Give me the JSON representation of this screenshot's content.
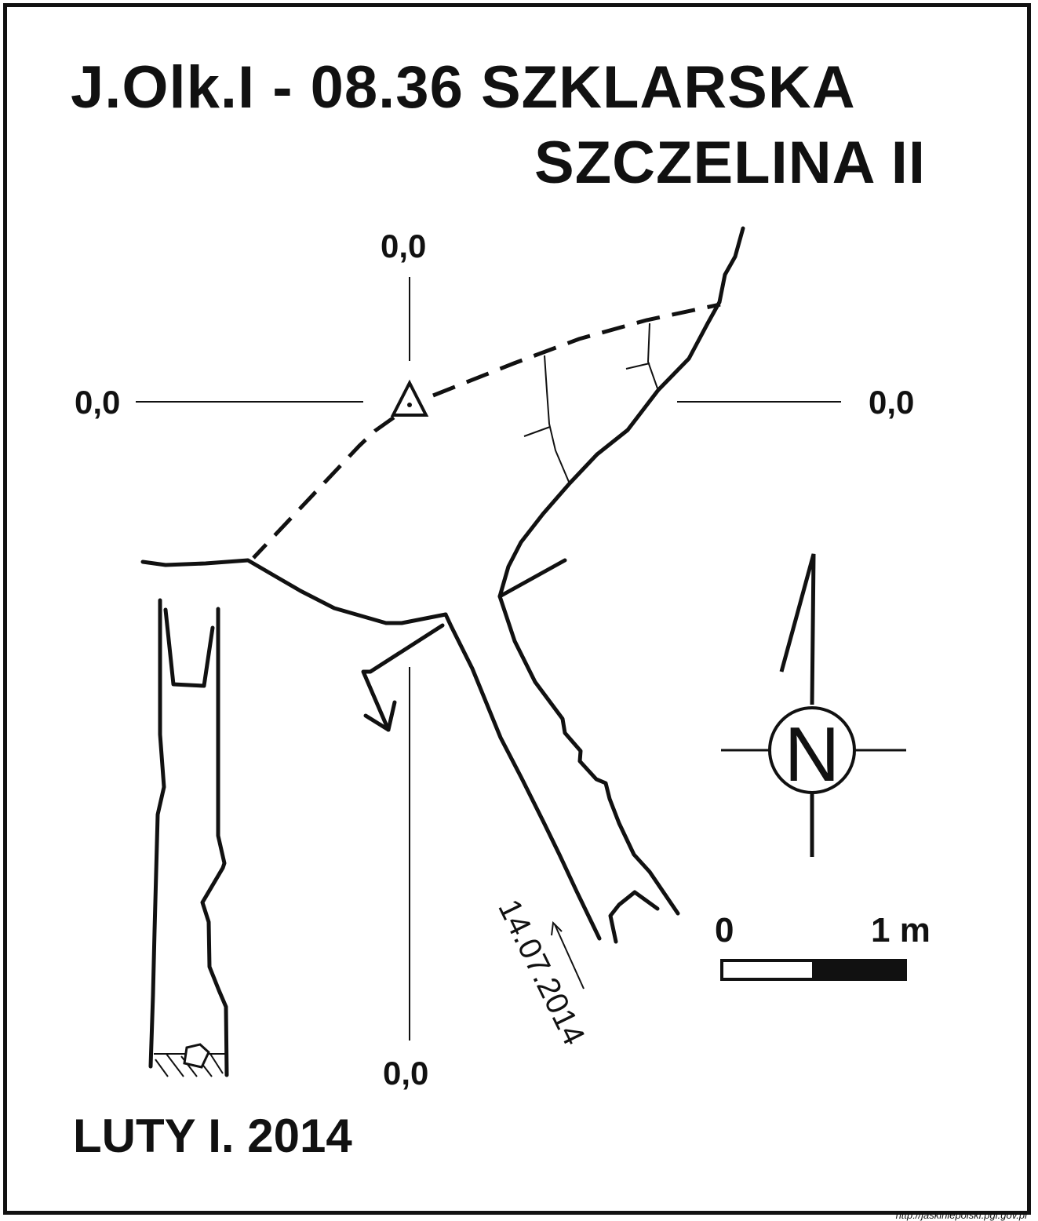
{
  "title": {
    "line1": "J.Olk.I - 08.36  SZKLARSKA",
    "line2": "SZCZELINA II"
  },
  "grid": {
    "top": "0,0",
    "left": "0,0",
    "right": "0,0",
    "bottom": "0,0"
  },
  "compass": {
    "letter": "N",
    "icon": "north-arrow-icon"
  },
  "scale": {
    "zero": "0",
    "one": "1 m"
  },
  "survey_date": "14.07.2014",
  "author": "LUTY I. 2014",
  "source_url": "http://jaskiniepolski.pgi.gov.pl",
  "colors": {
    "ink": "#111111",
    "background": "#ffffff"
  }
}
